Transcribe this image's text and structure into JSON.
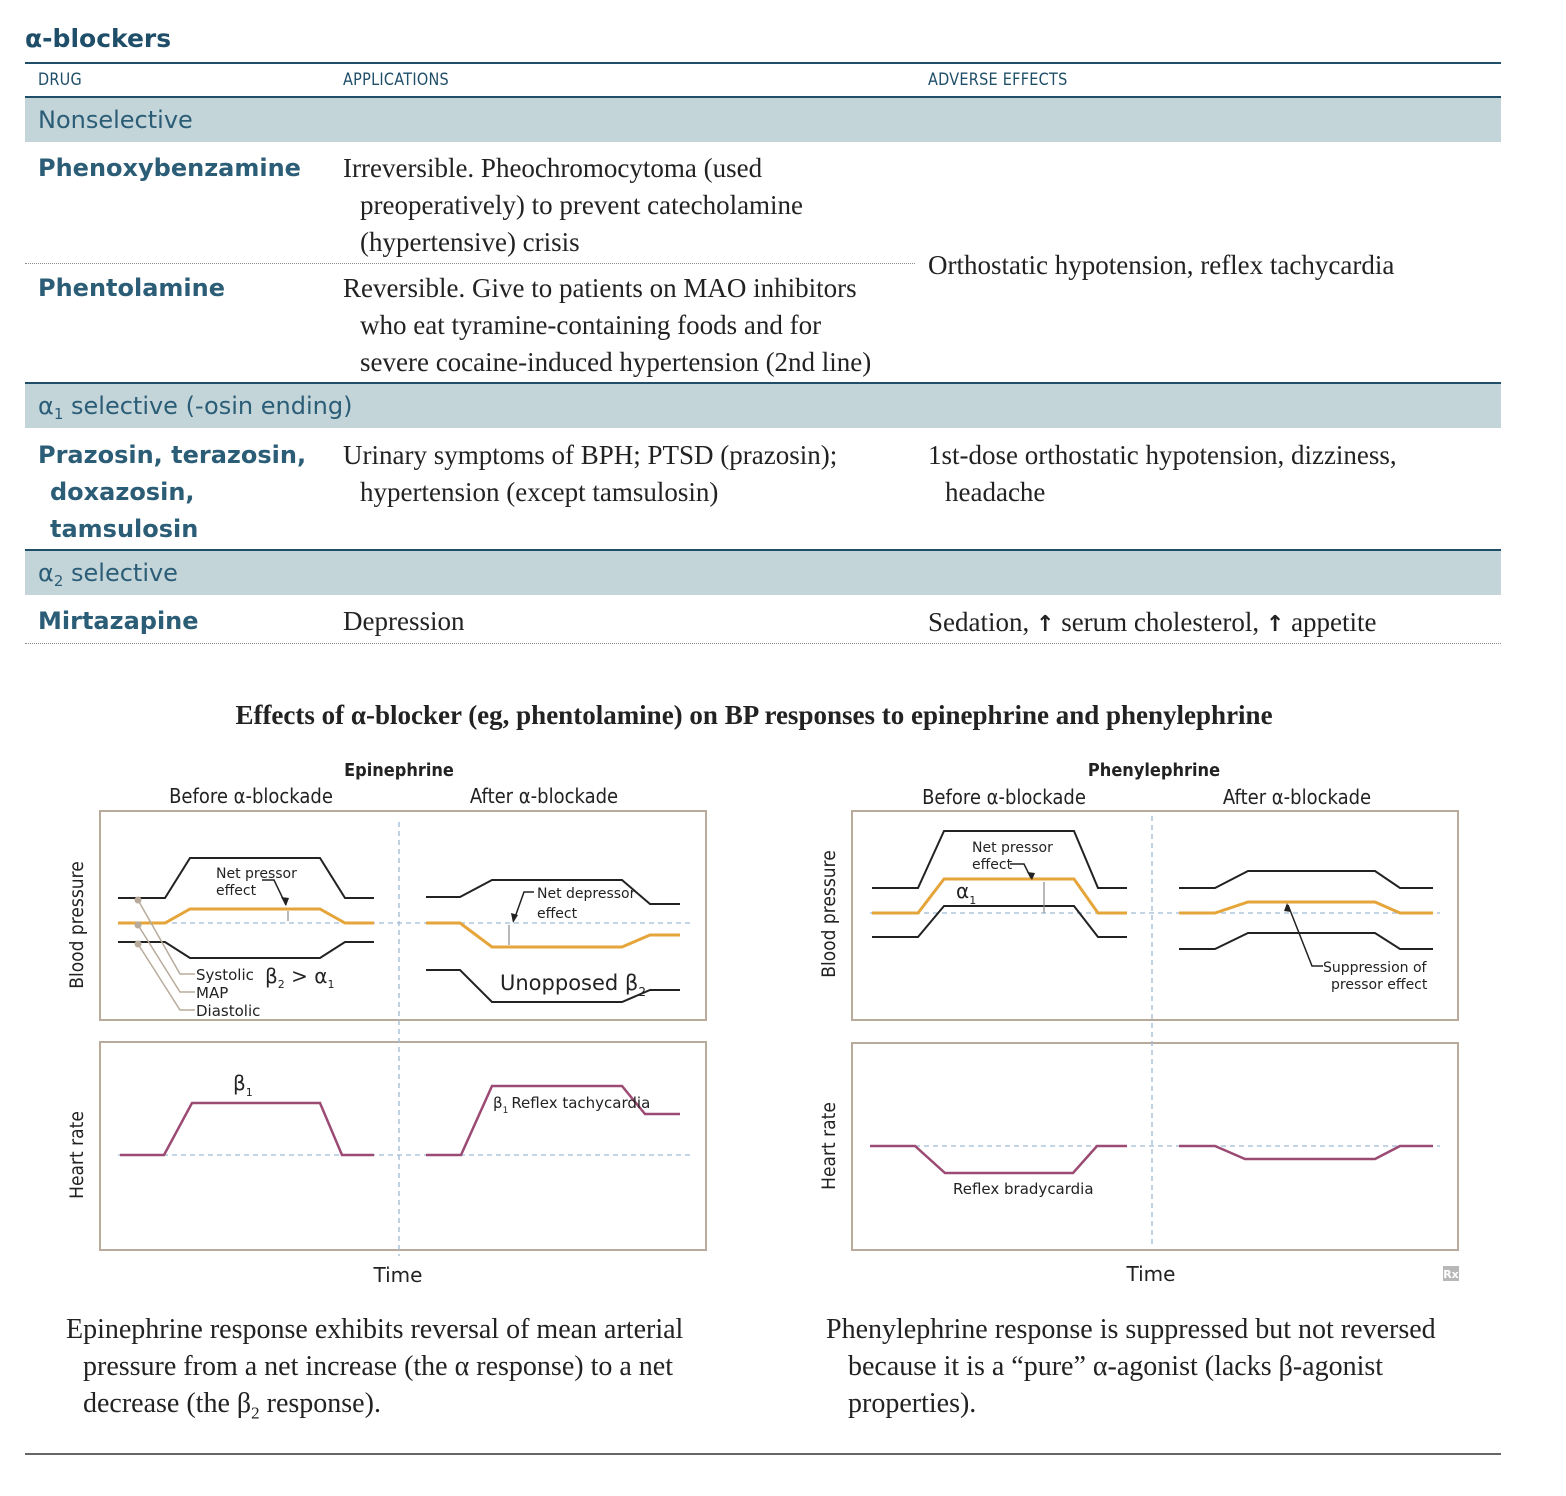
{
  "header": {
    "title": "α-blockers",
    "col_drug": "DRUG",
    "col_applications": "APPLICATIONS",
    "col_adverse": "ADVERSE EFFECTS"
  },
  "groups": {
    "nonselective": {
      "label": "Nonselective",
      "drug1": {
        "name": "Phenoxybenzamine",
        "app_l1": "Irreversible. Pheochromocytoma (used",
        "app_l2": "preoperatively) to prevent catecholamine",
        "app_l3": "(hypertensive) crisis"
      },
      "drug2": {
        "name": "Phentolamine",
        "app_l1": "Reversible. Give to patients on MAO inhibitors",
        "app_l2": "who eat tyramine-containing foods and for",
        "app_l3": "severe cocaine-induced hypertension (2nd line)"
      },
      "adverse": "Orthostatic hypotension, reflex tachycardia"
    },
    "a1": {
      "label_pre": "α",
      "label_sub": "1",
      "label_post": " selective (-osin ending)",
      "drug_l1": "Prazosin, terazosin,",
      "drug_l2": "doxazosin,",
      "drug_l3": "tamsulosin",
      "app_l1": "Urinary symptoms of BPH; PTSD (prazosin);",
      "app_l2": "hypertension (except tamsulosin)",
      "adv_l1": "1st-dose orthostatic hypotension, dizziness,",
      "adv_l2": "headache"
    },
    "a2": {
      "label_pre": "α",
      "label_sub": "2",
      "label_post": " selective",
      "drug": "Mirtazapine",
      "app": "Depression",
      "adv_p1": "Sedation, ",
      "adv_p2": " serum cholesterol, ",
      "adv_p3": " appetite",
      "arrow": "↑"
    }
  },
  "figure": {
    "title": "Effects of α-blocker (eg, phentolamine) on BP responses to epinephrine and phenylephrine",
    "epi": {
      "title": "Epinephrine",
      "before": "Before α-blockade",
      "after": "After α-blockade",
      "bp_label": "Blood pressure",
      "hr_label": "Heart rate",
      "time": "Time",
      "net_pressor_1": "Net pressor",
      "net_pressor_2": "effect",
      "net_depressor_1": "Net depressor",
      "net_depressor_2": "effect",
      "systolic": "Systolic",
      "map": "MAP",
      "diastolic": "Diastolic",
      "beta": "β",
      "alpha": "α",
      "sub2": "2",
      "sub1": "1",
      "gt": " > ",
      "unopposed": "Unopposed β",
      "reflex_tachy": "Reflex tachycardia"
    },
    "phe": {
      "title": "Phenylephrine",
      "before": "Before α-blockade",
      "after": "After α-blockade",
      "bp_label": "Blood pressure",
      "hr_label": "Heart rate",
      "time": "Time",
      "net_pressor_1": "Net pressor",
      "net_pressor_2": "effect",
      "alpha": "α",
      "sub1": "1",
      "suppression_1": "Suppression of",
      "suppression_2": "pressor effect",
      "reflex_brady": "Reflex bradycardia",
      "rx": "Rx"
    },
    "colors": {
      "map_line": "#e6a53a",
      "hr_line": "#9b4a73",
      "box": "#b8ab9b",
      "dashed": "#9fbad3",
      "dark": "#1f4e69",
      "band": "#c3d5d9"
    }
  },
  "captions": {
    "left_l1": "Epinephrine response exhibits reversal of mean arterial",
    "left_l2": "pressure from a net increase (the α response) to a net",
    "left_l3a": "decrease (the β",
    "left_l3sub": "2",
    "left_l3b": " response).",
    "right_l1": "Phenylephrine response is suppressed but not reversed",
    "right_l2": "because it is a “pure” α-agonist (lacks β-agonist",
    "right_l3": "properties)."
  }
}
